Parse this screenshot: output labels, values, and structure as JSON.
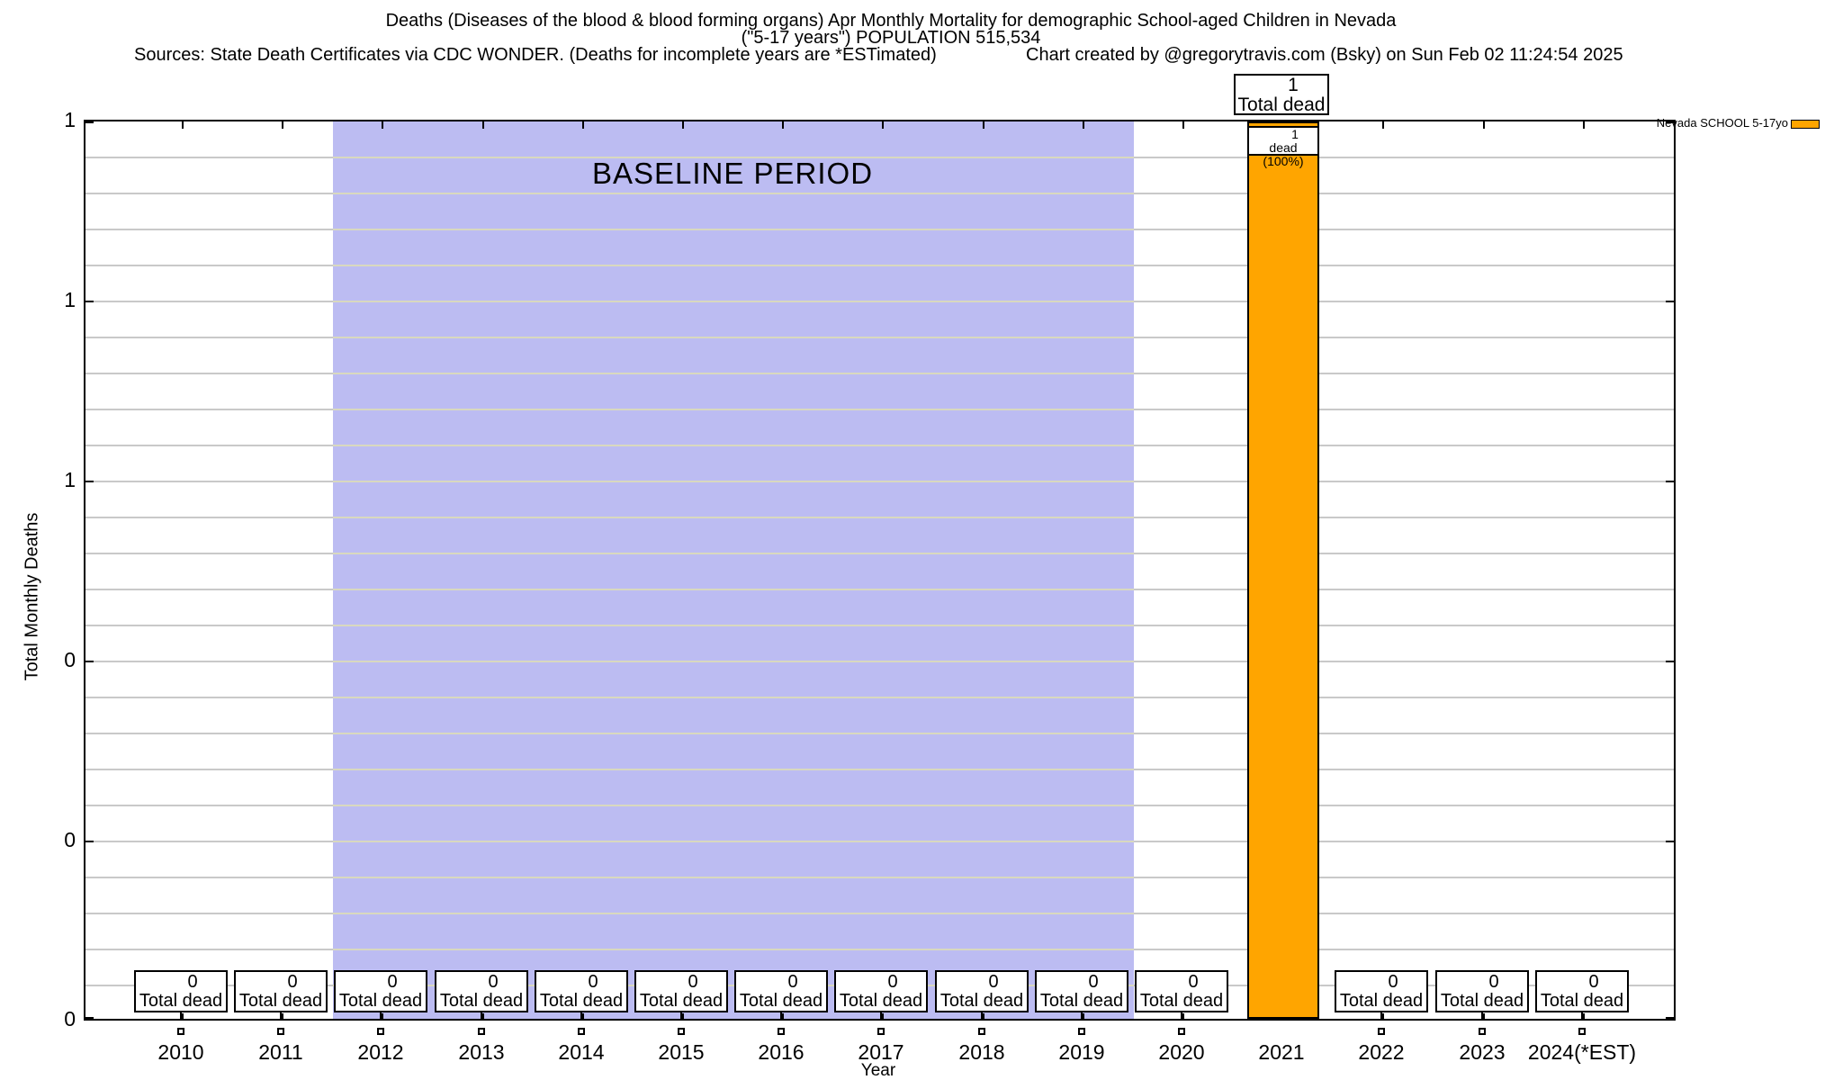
{
  "header": {
    "title_line1": "Deaths (Diseases of the blood & blood forming organs) Apr Monthly Mortality for demographic School-aged Children in Nevada",
    "title_line2": "(\"5-17 years\") POPULATION 515,534",
    "sources_line": "Sources: State Death Certificates via CDC WONDER. (Deaths for incomplete years are *ESTimated)",
    "credit_line": "Chart created by @gregorytravis.com (Bsky) on Sun Feb 02 11:24:54 2025"
  },
  "axes": {
    "ylabel": "Total Monthly Deaths",
    "xlabel": "Year",
    "ytick_labels": [
      "1",
      "1",
      "1",
      "0",
      "0",
      "0"
    ]
  },
  "legend": {
    "label": "Nevada SCHOOL 5-17yo",
    "swatch_color": "#ffa500"
  },
  "baseline": {
    "label": "BASELINE PERIOD",
    "color": "#bcbcf2",
    "from_category": "2012",
    "to_category": "2019"
  },
  "annotations": {
    "top_box": {
      "value": "1",
      "label": "Total dead"
    },
    "bar_box": {
      "value": "1",
      "label": "dead (100%)"
    }
  },
  "colors": {
    "bar": "#ffa500",
    "baseline_region": "#bcbcf2",
    "gridline": "#c9c9c9",
    "gridline_over_baseline": "#d8d8bf"
  },
  "chart_data": {
    "type": "bar",
    "title": "Deaths (Diseases of the blood & blood forming organs) Apr Monthly Mortality for demographic School-aged Children in Nevada (\"5-17 years\") POPULATION 515,534",
    "xlabel": "Year",
    "ylabel": "Total Monthly Deaths",
    "ylim": [
      0,
      1
    ],
    "grid": true,
    "legend_position": "top-right-outside",
    "categories": [
      "2010",
      "2011",
      "2012",
      "2013",
      "2014",
      "2015",
      "2016",
      "2017",
      "2018",
      "2019",
      "2020",
      "2021",
      "2022",
      "2023",
      "2024(*EST)"
    ],
    "series": [
      {
        "name": "Nevada SCHOOL 5-17yo",
        "color": "#ffa500",
        "values": [
          0,
          0,
          0,
          0,
          0,
          0,
          0,
          0,
          0,
          0,
          0,
          1,
          0,
          0,
          0
        ]
      }
    ],
    "baseline_period": {
      "label": "BASELINE PERIOD",
      "from": "2012",
      "to": "2019"
    },
    "year_box_label": "Total dead",
    "year_boxes": [
      {
        "year": "2010",
        "value": "0"
      },
      {
        "year": "2011",
        "value": "0"
      },
      {
        "year": "2012",
        "value": "0"
      },
      {
        "year": "2013",
        "value": "0"
      },
      {
        "year": "2014",
        "value": "0"
      },
      {
        "year": "2015",
        "value": "0"
      },
      {
        "year": "2016",
        "value": "0"
      },
      {
        "year": "2017",
        "value": "0"
      },
      {
        "year": "2018",
        "value": "0"
      },
      {
        "year": "2019",
        "value": "0"
      },
      {
        "year": "2020",
        "value": "0"
      },
      {
        "year": "2021",
        "value": "1",
        "note": "bar year, no box"
      },
      {
        "year": "2022",
        "value": "0"
      },
      {
        "year": "2023",
        "value": "0"
      },
      {
        "year": "2024(*EST)",
        "value": "0"
      }
    ]
  }
}
